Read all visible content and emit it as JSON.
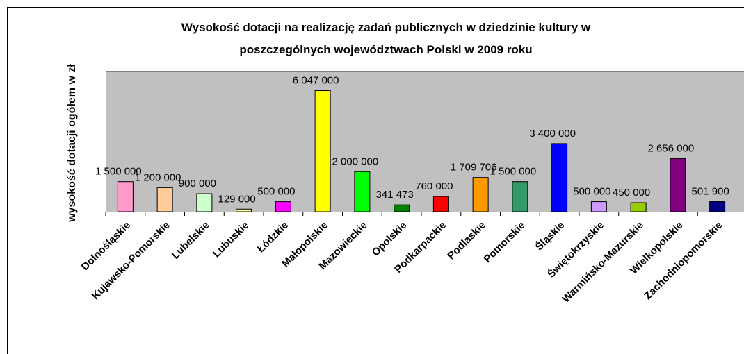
{
  "chart_data": {
    "type": "bar",
    "title": [
      "Wysokość dotacji na realizację zadań publicznych w dziedzinie kultury w",
      "poszczególnych województwach Polski w 2009 roku"
    ],
    "y_label": "wysokość dotacji ogółem w zł",
    "categories": [
      "Dolnośląskie",
      "Kujawsko-Pomorskie",
      "Lubelskie",
      "Lubuskie",
      "Łódzkie",
      "Małopolskie",
      "Mazowieckie",
      "Opolskie",
      "Podkarpackie",
      "Podlaskie",
      "Pomorskie",
      "Śląskie",
      "Świętokrzyskie",
      "Warmińsko-Mazurskie",
      "Wielkopolskie",
      "Zachodniopomorskie"
    ],
    "values": [
      1500000,
      1200000,
      900000,
      129000,
      500000,
      6047000,
      2000000,
      341473,
      760000,
      1709706,
      1500000,
      3400000,
      500000,
      450000,
      2656000,
      501900
    ],
    "value_labels": [
      "1 500 000",
      "1 200 000",
      "900 000",
      "129 000",
      "500 000",
      "6 047 000",
      "2 000 000",
      "341 473",
      "760 000",
      "1 709 706",
      "1 500 000",
      "3 400 000",
      "500 000",
      "450 000",
      "2 656 000",
      "501 900"
    ],
    "colors": [
      "#ff99cc",
      "#ffcc99",
      "#ccffcc",
      "#ffff99",
      "#ff00ff",
      "#ffff00",
      "#00ff00",
      "#008000",
      "#ff0000",
      "#ff9900",
      "#339966",
      "#0000ff",
      "#cc99ff",
      "#99cc00",
      "#800080",
      "#000080"
    ],
    "ylim": [
      0,
      7000000
    ]
  }
}
